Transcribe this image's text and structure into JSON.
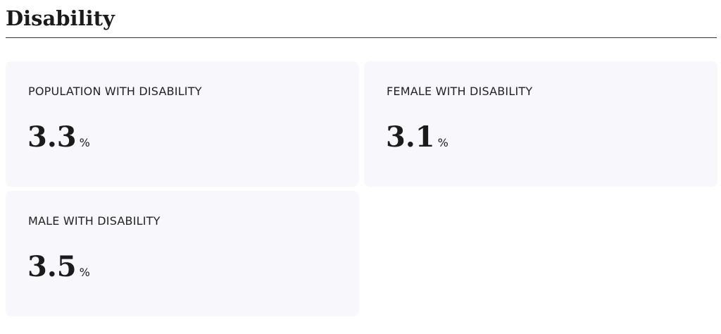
{
  "header": {
    "title": "Disability"
  },
  "cards": [
    {
      "label": "POPULATION WITH DISABILITY",
      "value": 3.3,
      "unit": "%"
    },
    {
      "label": "FEMALE WITH DISABILITY",
      "value": 3.1,
      "unit": "%"
    },
    {
      "label": "MALE WITH DISABILITY",
      "value": 3.5,
      "unit": "%"
    }
  ]
}
